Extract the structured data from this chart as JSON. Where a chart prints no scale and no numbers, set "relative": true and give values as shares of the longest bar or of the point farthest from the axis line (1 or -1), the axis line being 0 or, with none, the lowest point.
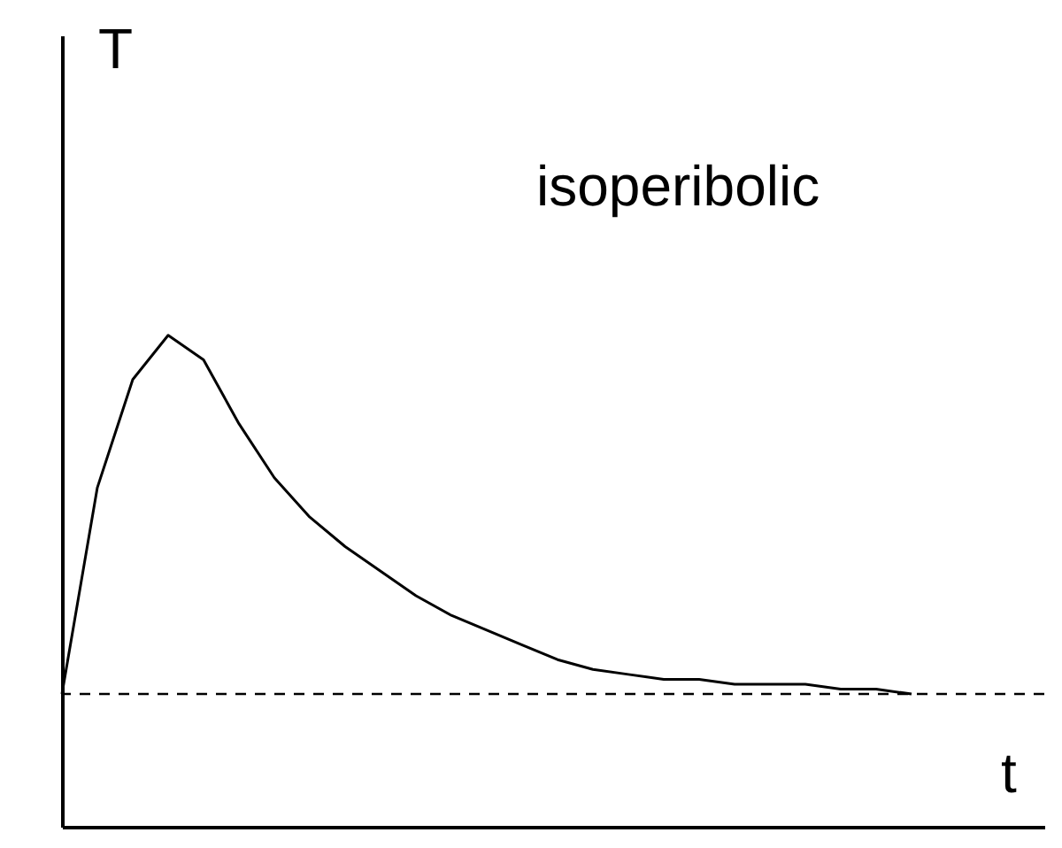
{
  "chart_data": {
    "type": "line",
    "relative": true,
    "xlabel": "t",
    "ylabel": "T",
    "tick_labels": false,
    "grid": false,
    "marker": "none",
    "line_style": "solid",
    "annotations": [
      "isoperibolic"
    ],
    "categories": [
      null,
      null,
      null,
      null,
      null,
      null,
      null,
      null,
      null,
      null,
      null,
      null,
      null,
      null,
      null,
      null,
      null,
      null,
      null,
      null,
      null,
      null,
      null,
      null,
      null
    ],
    "series": [
      {
        "color": "#000000",
        "values": [
          0.27,
          0.69,
          0.91,
          1.0,
          0.95,
          0.82,
          0.71,
          0.63,
          0.57,
          0.52,
          0.47,
          0.43,
          0.4,
          0.37,
          0.34,
          0.32,
          0.31,
          0.3,
          0.3,
          0.29,
          0.29,
          0.29,
          0.28,
          0.28,
          0.27
        ]
      }
    ],
    "ref_lines": [
      {
        "axis": "y",
        "value": 0.27,
        "color": "#000000",
        "line_style": "dashed"
      }
    ]
  }
}
